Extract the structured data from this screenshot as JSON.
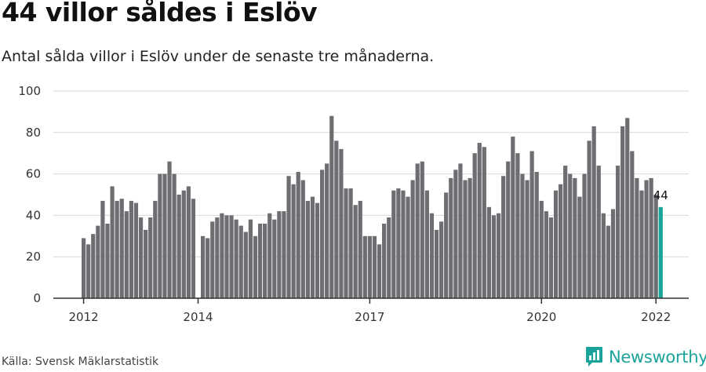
{
  "header": {
    "title": "44 villor såldes i Eslöv",
    "subtitle": "Antal sålda villor i Eslöv under de senaste tre månaderna."
  },
  "footer": {
    "source": "Källa: Svensk Mäklarstatistik",
    "brand": "Newsworthy"
  },
  "colors": {
    "bar": "#6d6e72",
    "highlight": "#1aa39a",
    "grid": "#d8d8d8",
    "axis": "#333333"
  },
  "chart_data": {
    "type": "bar",
    "title": "44 villor såldes i Eslöv",
    "xlabel": "",
    "ylabel": "",
    "ylim": [
      0,
      100
    ],
    "yticks": [
      0,
      20,
      40,
      60,
      80,
      100
    ],
    "xticks": [
      {
        "label": "2012",
        "index": 0
      },
      {
        "label": "2014",
        "index": 24
      },
      {
        "label": "2017",
        "index": 60
      },
      {
        "label": "2020",
        "index": 96
      },
      {
        "label": "2022",
        "index": 120
      }
    ],
    "highlight_label": "44",
    "values": [
      29,
      26,
      31,
      35,
      47,
      36,
      54,
      47,
      48,
      42,
      47,
      46,
      39,
      33,
      39,
      47,
      60,
      60,
      66,
      60,
      50,
      52,
      54,
      48,
      0,
      30,
      29,
      37,
      39,
      41,
      40,
      40,
      38,
      35,
      32,
      38,
      30,
      36,
      36,
      41,
      38,
      42,
      42,
      59,
      55,
      61,
      57,
      47,
      49,
      46,
      62,
      65,
      88,
      76,
      72,
      53,
      53,
      45,
      47,
      30,
      30,
      30,
      26,
      36,
      39,
      52,
      53,
      52,
      49,
      57,
      65,
      66,
      52,
      41,
      33,
      37,
      51,
      58,
      62,
      65,
      57,
      58,
      70,
      75,
      73,
      44,
      40,
      41,
      59,
      66,
      78,
      70,
      60,
      57,
      71,
      61,
      47,
      42,
      39,
      52,
      55,
      64,
      60,
      58,
      49,
      60,
      76,
      83,
      64,
      41,
      35,
      43,
      64,
      83,
      87,
      71,
      58,
      52,
      57,
      58,
      50,
      44
    ]
  }
}
